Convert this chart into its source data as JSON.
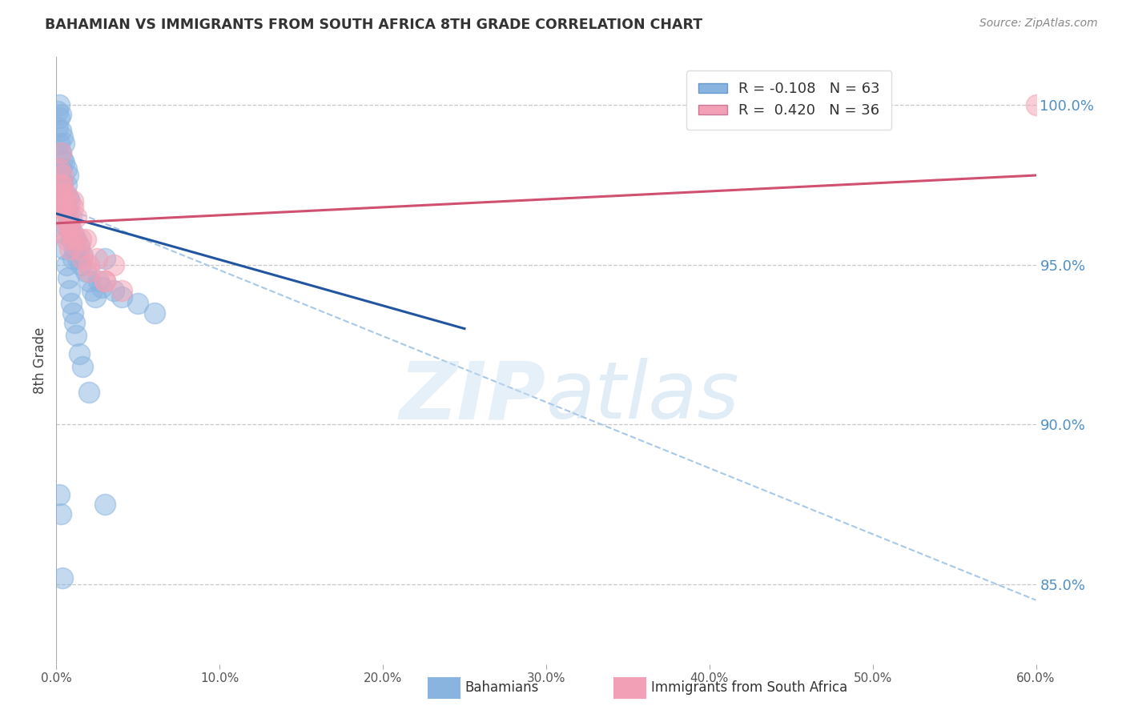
{
  "title": "BAHAMIAN VS IMMIGRANTS FROM SOUTH AFRICA 8TH GRADE CORRELATION CHART",
  "source": "Source: ZipAtlas.com",
  "ylabel": "8th Grade",
  "xlim": [
    0.0,
    0.6
  ],
  "ylim": [
    0.825,
    1.015
  ],
  "xticks": [
    0.0,
    0.1,
    0.2,
    0.3,
    0.4,
    0.5,
    0.6
  ],
  "xticklabels": [
    "0.0%",
    "10.0%",
    "20.0%",
    "30.0%",
    "40.0%",
    "50.0%",
    "60.0%"
  ],
  "yticks": [
    0.85,
    0.9,
    0.95,
    1.0
  ],
  "yticklabels": [
    "85.0%",
    "90.0%",
    "95.0%",
    "100.0%"
  ],
  "legend_blue_r": "-0.108",
  "legend_blue_n": "63",
  "legend_pink_r": "0.420",
  "legend_pink_n": "36",
  "blue_color": "#89B4E0",
  "pink_color": "#F2A0B5",
  "trend_blue_color": "#2255A0",
  "trend_pink_color": "#D05070",
  "dashed_line_color": "#A8C8E8",
  "grid_color": "#C8C8C8",
  "title_color": "#333333",
  "source_color": "#888888",
  "ytick_color": "#5090C8",
  "xtick_color": "#555555",
  "blue_x": [
    0.001,
    0.001,
    0.002,
    0.002,
    0.002,
    0.003,
    0.003,
    0.003,
    0.003,
    0.004,
    0.004,
    0.004,
    0.005,
    0.005,
    0.005,
    0.006,
    0.006,
    0.006,
    0.006,
    0.007,
    0.007,
    0.007,
    0.008,
    0.008,
    0.009,
    0.009,
    0.01,
    0.01,
    0.011,
    0.012,
    0.013,
    0.014,
    0.015,
    0.016,
    0.018,
    0.02,
    0.022,
    0.024,
    0.026,
    0.028,
    0.03,
    0.035,
    0.04,
    0.05,
    0.06,
    0.002,
    0.003,
    0.004,
    0.005,
    0.006,
    0.007,
    0.008,
    0.009,
    0.01,
    0.011,
    0.012,
    0.014,
    0.016,
    0.02,
    0.03,
    0.002,
    0.003,
    0.004
  ],
  "blue_y": [
    0.998,
    0.993,
    1.0,
    0.996,
    0.988,
    0.997,
    0.992,
    0.985,
    0.98,
    0.99,
    0.983,
    0.976,
    0.988,
    0.982,
    0.972,
    0.98,
    0.975,
    0.968,
    0.962,
    0.978,
    0.971,
    0.964,
    0.97,
    0.963,
    0.965,
    0.958,
    0.96,
    0.952,
    0.955,
    0.958,
    0.952,
    0.956,
    0.95,
    0.953,
    0.948,
    0.945,
    0.942,
    0.94,
    0.945,
    0.943,
    0.952,
    0.942,
    0.94,
    0.938,
    0.935,
    0.968,
    0.974,
    0.96,
    0.955,
    0.95,
    0.946,
    0.942,
    0.938,
    0.935,
    0.932,
    0.928,
    0.922,
    0.918,
    0.91,
    0.875,
    0.878,
    0.872,
    0.852
  ],
  "pink_x": [
    0.001,
    0.002,
    0.002,
    0.003,
    0.003,
    0.004,
    0.004,
    0.005,
    0.005,
    0.006,
    0.006,
    0.007,
    0.008,
    0.008,
    0.009,
    0.01,
    0.011,
    0.012,
    0.014,
    0.016,
    0.018,
    0.02,
    0.025,
    0.03,
    0.035,
    0.04,
    0.003,
    0.004,
    0.005,
    0.006,
    0.008,
    0.01,
    0.015,
    0.02,
    0.03,
    0.6
  ],
  "pink_y": [
    0.968,
    0.98,
    0.972,
    0.975,
    0.965,
    0.978,
    0.968,
    0.972,
    0.96,
    0.97,
    0.958,
    0.965,
    0.962,
    0.955,
    0.96,
    0.968,
    0.958,
    0.965,
    0.955,
    0.952,
    0.958,
    0.948,
    0.952,
    0.945,
    0.95,
    0.942,
    0.985,
    0.975,
    0.968,
    0.972,
    0.962,
    0.97,
    0.958,
    0.95,
    0.945,
    1.0
  ],
  "blue_trendline_x": [
    0.0,
    0.25
  ],
  "blue_trendline_y": [
    0.966,
    0.93
  ],
  "pink_trendline_x": [
    0.0,
    0.6
  ],
  "pink_trendline_y": [
    0.963,
    0.978
  ],
  "dashed_trendline_x": [
    0.0,
    0.6
  ],
  "dashed_trendline_y": [
    0.969,
    0.845
  ],
  "background_color": "#FFFFFF"
}
